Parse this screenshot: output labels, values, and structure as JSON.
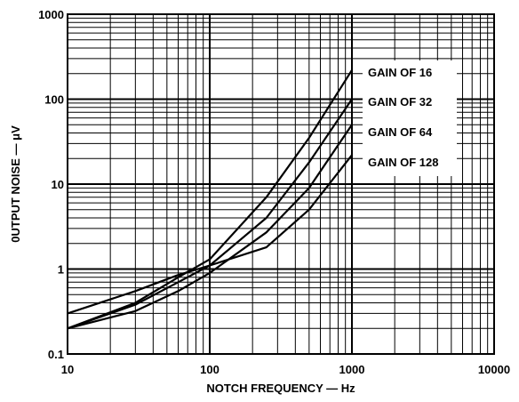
{
  "chart_data": {
    "type": "line",
    "xlabel": "NOTCH FREQUENCY — Hz",
    "ylabel": "0UTPUT NOISE — μV",
    "x_scale": "log",
    "y_scale": "log",
    "xlim": [
      10,
      10000
    ],
    "ylim": [
      0.1,
      1000
    ],
    "x_ticks": [
      "10",
      "100",
      "1000",
      "10000"
    ],
    "y_ticks": [
      "0.1",
      "1",
      "10",
      "100",
      "1000"
    ],
    "grid": true,
    "x": [
      10,
      30,
      60,
      100,
      250,
      500,
      1000
    ],
    "series": [
      {
        "name": "GAIN OF 16",
        "values": [
          0.2,
          0.4,
          0.8,
          1.3,
          7.0,
          35,
          220
        ]
      },
      {
        "name": "GAIN OF 32",
        "values": [
          0.2,
          0.38,
          0.7,
          1.1,
          4.0,
          18,
          100
        ]
      },
      {
        "name": "GAIN OF 64",
        "values": [
          0.2,
          0.32,
          0.55,
          0.9,
          2.7,
          9,
          50
        ]
      },
      {
        "name": "GAIN OF 128",
        "values": [
          0.3,
          0.55,
          0.85,
          1.1,
          1.8,
          5,
          22
        ]
      }
    ]
  }
}
